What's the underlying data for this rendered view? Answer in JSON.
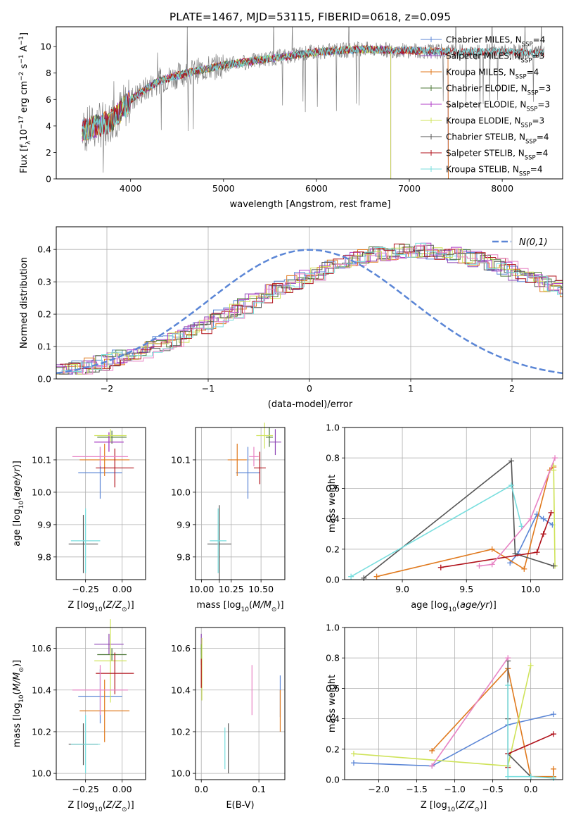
{
  "figure_title": "PLATE=1467, MJD=53115, FIBERID=0618, z=0.095",
  "palette": {
    "chabrier_miles": "#5b86d6",
    "salpeter_miles": "#8e44b5",
    "kroupa_miles": "#e07a1f",
    "chabrier_elodie": "#4f7a3a",
    "salpeter_elodie": "#b03fc7",
    "kroupa_elodie": "#cfe35a",
    "chabrier_stelib": "#555555",
    "salpeter_stelib": "#b0121b",
    "kroupa_stelib": "#78dede",
    "pink": "#e783c4",
    "normal_line": "#5b86d6",
    "observed": "#808080"
  },
  "chart_data": [
    {
      "id": "spectrum",
      "type": "line",
      "title": "PLATE=1467, MJD=53115, FIBERID=0618, z=0.095",
      "xlabel": "wavelength [Angstrom, rest frame]",
      "ylabel": "Flux [f_λ 10^-17 erg cm^-2 s^-1 A^-1]",
      "xlim": [
        3200,
        8650
      ],
      "ylim": [
        0,
        11.5
      ],
      "xticks": [
        "4000",
        "5000",
        "6000",
        "7000",
        "8000"
      ],
      "yticks": [
        "0",
        "2",
        "4",
        "6",
        "8",
        "10"
      ],
      "legend_loc": "right",
      "observed_continuum": {
        "x": [
          3480,
          3600,
          3800,
          4000,
          4300,
          4600,
          5000,
          5500,
          6000,
          6500,
          7000,
          7500,
          8000,
          8450
        ],
        "y": [
          3.6,
          3.9,
          4.4,
          6.0,
          7.4,
          8.0,
          8.6,
          9.1,
          9.6,
          9.8,
          9.7,
          9.6,
          9.6,
          9.5
        ]
      },
      "series": [
        {
          "name": "Chabrier MILES",
          "nssp": "4",
          "color_key": "chabrier_miles",
          "x_end": 7420
        },
        {
          "name": "Salpeter MILES",
          "nssp": "3",
          "color_key": "salpeter_miles",
          "x_end": 7420
        },
        {
          "name": "Kroupa MILES",
          "nssp": "4",
          "color_key": "kroupa_miles",
          "x_end": 7420
        },
        {
          "name": "Chabrier ELODIE",
          "nssp": "3",
          "color_key": "chabrier_elodie",
          "x_end": 6800
        },
        {
          "name": "Salpeter ELODIE",
          "nssp": "3",
          "color_key": "salpeter_elodie",
          "x_end": 6800
        },
        {
          "name": "Kroupa ELODIE",
          "nssp": "3",
          "color_key": "kroupa_elodie",
          "x_end": 6800
        },
        {
          "name": "Chabrier STELIB",
          "nssp": "4",
          "color_key": "chabrier_stelib",
          "x_end": 8450
        },
        {
          "name": "Salpeter STELIB",
          "nssp": "4",
          "color_key": "salpeter_stelib",
          "x_end": 8450
        },
        {
          "name": "Kroupa STELIB",
          "nssp": "4",
          "color_key": "kroupa_stelib",
          "x_end": 8450
        }
      ]
    },
    {
      "id": "residuals",
      "type": "histogram",
      "xlabel": "(data-model)/error",
      "ylabel": "Normed distribution",
      "xlim": [
        -2.5,
        2.5
      ],
      "ylim": [
        0,
        0.47
      ],
      "xticks": [
        "−2",
        "−1",
        "0",
        "1",
        "2"
      ],
      "yticks": [
        "0.0",
        "0.1",
        "0.2",
        "0.3",
        "0.4"
      ],
      "legend": "N(0,1)",
      "legend_loc": "top-right",
      "bin_width": 0.1,
      "bin_start": -2.5,
      "values": [
        0.022,
        0.026,
        0.034,
        0.043,
        0.05,
        0.058,
        0.066,
        0.075,
        0.086,
        0.097,
        0.109,
        0.122,
        0.136,
        0.149,
        0.164,
        0.178,
        0.193,
        0.208,
        0.224,
        0.239,
        0.254,
        0.27,
        0.285,
        0.3,
        0.314,
        0.327,
        0.34,
        0.352,
        0.362,
        0.371,
        0.379,
        0.385,
        0.39,
        0.394,
        0.396,
        0.398,
        0.397,
        0.394,
        0.39,
        0.384,
        0.378,
        0.37,
        0.361,
        0.351,
        0.34,
        0.329,
        0.317,
        0.305,
        0.293,
        0.281,
        0.268,
        0.255,
        0.242,
        0.229,
        0.216,
        0.202,
        0.189,
        0.176,
        0.164,
        0.151,
        0.139,
        0.128,
        0.117,
        0.106,
        0.097,
        0.088,
        0.079,
        0.071,
        0.064,
        0.058,
        0.052,
        0.047,
        0.042,
        0.038,
        0.034,
        0.031,
        0.029,
        0.027,
        0.025,
        0.024,
        0.022,
        0.021,
        0.02,
        0.02,
        0.02,
        0.02,
        0.02,
        0.02,
        0.02,
        0.02,
        0.02,
        0.02,
        0.02,
        0.02,
        0.02,
        0.02,
        0.02,
        0.02,
        0.02,
        0.02,
        0.02
      ]
    },
    {
      "id": "age_vs_z",
      "type": "errorbar",
      "xlabel": "Z [log10(Z/Z⊙)]",
      "ylabel": "age [log10(age/yr)]",
      "xlim": [
        -0.45,
        0.16
      ],
      "ylim": [
        9.73,
        10.2
      ],
      "xticks": [
        "−0.25",
        "0.00"
      ],
      "yticks": [
        "9.8",
        "9.9",
        "10.0",
        "10.1"
      ],
      "points": [
        {
          "color_key": "chabrier_miles",
          "x": -0.15,
          "xerr": 0.15,
          "y": 10.06,
          "yerr": 0.08
        },
        {
          "color_key": "salpeter_miles",
          "x": -0.09,
          "xerr": 0.1,
          "y": 10.155,
          "yerr": 0.03
        },
        {
          "color_key": "kroupa_miles",
          "x": -0.12,
          "xerr": 0.17,
          "y": 10.1,
          "yerr": 0.05
        },
        {
          "color_key": "chabrier_elodie",
          "x": -0.07,
          "xerr": 0.1,
          "y": 10.17,
          "yerr": 0.02
        },
        {
          "color_key": "salpeter_elodie",
          "x": -0.09,
          "xerr": 0.1,
          "y": 10.155,
          "yerr": 0.03
        },
        {
          "color_key": "kroupa_elodie",
          "x": -0.08,
          "xerr": 0.11,
          "y": 10.175,
          "yerr": 0.02
        },
        {
          "color_key": "chabrier_stelib",
          "x": -0.265,
          "xerr": 0.1,
          "y": 9.84,
          "yerr": 0.09
        },
        {
          "color_key": "salpeter_stelib",
          "x": -0.05,
          "xerr": 0.13,
          "y": 10.075,
          "yerr": 0.06
        },
        {
          "color_key": "kroupa_stelib",
          "x": -0.25,
          "xerr": 0.1,
          "y": 9.85,
          "yerr": 0.1
        },
        {
          "color_key": "pink",
          "x": -0.15,
          "xerr": 0.19,
          "y": 10.11,
          "yerr": 0.03
        }
      ]
    },
    {
      "id": "age_vs_mass",
      "type": "errorbar",
      "xlabel": "mass [log10(M/M⊙)]",
      "ylabel": "",
      "xlim": [
        9.95,
        10.7
      ],
      "ylim": [
        9.73,
        10.2
      ],
      "xticks": [
        "10.00",
        "10.25",
        "10.50"
      ],
      "yticks": [
        "9.8",
        "9.9",
        "10.0",
        "10.1"
      ],
      "points": [
        {
          "color_key": "chabrier_miles",
          "x": 10.39,
          "xerr": 0.1,
          "y": 10.06,
          "yerr": 0.08
        },
        {
          "color_key": "salpeter_miles",
          "x": 10.62,
          "xerr": 0.05,
          "y": 10.155,
          "yerr": 0.04
        },
        {
          "color_key": "kroupa_miles",
          "x": 10.3,
          "xerr": 0.08,
          "y": 10.1,
          "yerr": 0.05
        },
        {
          "color_key": "chabrier_elodie",
          "x": 10.57,
          "xerr": 0.03,
          "y": 10.17,
          "yerr": 0.03
        },
        {
          "color_key": "kroupa_elodie",
          "x": 10.53,
          "xerr": 0.07,
          "y": 10.175,
          "yerr": 0.04
        },
        {
          "color_key": "chabrier_stelib",
          "x": 10.15,
          "xerr": 0.1,
          "y": 9.84,
          "yerr": 0.12
        },
        {
          "color_key": "salpeter_stelib",
          "x": 10.49,
          "xerr": 0.05,
          "y": 10.075,
          "yerr": 0.05
        },
        {
          "color_key": "kroupa_stelib",
          "x": 10.14,
          "xerr": 0.07,
          "y": 9.85,
          "yerr": 0.1
        },
        {
          "color_key": "pink",
          "x": 10.44,
          "xerr": 0.04,
          "y": 10.11,
          "yerr": 0.03
        }
      ]
    },
    {
      "id": "weight_vs_age",
      "type": "line",
      "xlabel": "age [log10(age/yr)]",
      "ylabel": "mass weight",
      "xlim": [
        8.55,
        10.25
      ],
      "ylim": [
        0,
        1.0
      ],
      "xticks": [
        "9.0",
        "9.5",
        "10.0"
      ],
      "yticks": [
        "0.0",
        "0.2",
        "0.4",
        "0.6",
        "0.8",
        "1.0"
      ],
      "series": [
        {
          "color_key": "chabrier_miles",
          "x": [
            9.84,
            9.9,
            10.05,
            10.1,
            10.17
          ],
          "y": [
            0.11,
            0.17,
            0.43,
            0.4,
            0.36
          ]
        },
        {
          "color_key": "kroupa_miles",
          "x": [
            8.8,
            9.7,
            9.95,
            10.15,
            10.18
          ],
          "y": [
            0.02,
            0.2,
            0.07,
            0.72,
            0.74
          ]
        },
        {
          "color_key": "kroupa_elodie",
          "x": [
            10.18,
            10.19,
            10.18
          ],
          "y": [
            0.75,
            0.09,
            0.72
          ]
        },
        {
          "color_key": "chabrier_stelib",
          "x": [
            8.7,
            9.85,
            9.88,
            10.18
          ],
          "y": [
            0.01,
            0.78,
            0.17,
            0.09
          ]
        },
        {
          "color_key": "salpeter_stelib",
          "x": [
            9.3,
            10.05,
            10.1,
            10.16
          ],
          "y": [
            0.08,
            0.18,
            0.3,
            0.44
          ]
        },
        {
          "color_key": "kroupa_stelib",
          "x": [
            8.6,
            9.85,
            9.93
          ],
          "y": [
            0.02,
            0.62,
            0.35
          ]
        },
        {
          "color_key": "pink",
          "x": [
            9.6,
            9.7,
            10.0,
            10.19
          ],
          "y": [
            0.09,
            0.1,
            0.4,
            0.8
          ]
        }
      ]
    },
    {
      "id": "mass_vs_z",
      "type": "errorbar",
      "xlabel": "Z [log10(Z/Z⊙)]",
      "ylabel": "mass [log10(M/M⊙)]",
      "xlim": [
        -0.45,
        0.16
      ],
      "ylim": [
        9.97,
        10.7
      ],
      "xticks": [
        "−0.25",
        "0.00"
      ],
      "yticks": [
        "10.0",
        "10.2",
        "10.4",
        "10.6"
      ],
      "points": [
        {
          "color_key": "chabrier_miles",
          "x": -0.15,
          "xerr": 0.15,
          "y": 10.37,
          "yerr": 0.13
        },
        {
          "color_key": "salpeter_miles",
          "x": -0.09,
          "xerr": 0.1,
          "y": 10.62,
          "yerr": 0.05
        },
        {
          "color_key": "kroupa_miles",
          "x": -0.12,
          "xerr": 0.17,
          "y": 10.3,
          "yerr": 0.15
        },
        {
          "color_key": "chabrier_elodie",
          "x": -0.07,
          "xerr": 0.1,
          "y": 10.57,
          "yerr": 0.03
        },
        {
          "color_key": "kroupa_elodie",
          "x": -0.08,
          "xerr": 0.11,
          "y": 10.54,
          "yerr": 0.2
        },
        {
          "color_key": "chabrier_stelib",
          "x": -0.265,
          "xerr": 0.1,
          "y": 10.14,
          "yerr": 0.1
        },
        {
          "color_key": "salpeter_stelib",
          "x": -0.05,
          "xerr": 0.13,
          "y": 10.48,
          "yerr": 0.1
        },
        {
          "color_key": "kroupa_stelib",
          "x": -0.25,
          "xerr": 0.1,
          "y": 10.14,
          "yerr": 0.14
        },
        {
          "color_key": "pink",
          "x": -0.15,
          "xerr": 0.19,
          "y": 10.4,
          "yerr": 0.12
        }
      ]
    },
    {
      "id": "mass_vs_ebv",
      "type": "errorbar",
      "xlabel": "E(B-V)",
      "ylabel": "",
      "xlim": [
        -0.01,
        0.145
      ],
      "ylim": [
        9.97,
        10.7
      ],
      "xticks": [
        "0.0",
        "0.1"
      ],
      "yticks": [
        "10.0",
        "10.2",
        "10.4",
        "10.6"
      ],
      "points": [
        {
          "color_key": "chabrier_miles",
          "x": 0.137,
          "xerr": 0,
          "y": 10.37,
          "yerr": 0.1
        },
        {
          "color_key": "salpeter_miles",
          "x": 0.0,
          "xerr": 0,
          "y": 10.62,
          "yerr": 0.05
        },
        {
          "color_key": "kroupa_miles",
          "x": 0.137,
          "xerr": 0,
          "y": 10.3,
          "yerr": 0.1
        },
        {
          "color_key": "chabrier_elodie",
          "x": 0.0,
          "xerr": 0,
          "y": 10.57,
          "yerr": 0.05
        },
        {
          "color_key": "kroupa_elodie",
          "x": 0.001,
          "xerr": 0,
          "y": 10.5,
          "yerr": 0.15
        },
        {
          "color_key": "chabrier_stelib",
          "x": 0.047,
          "xerr": 0,
          "y": 10.12,
          "yerr": 0.12
        },
        {
          "color_key": "salpeter_stelib",
          "x": 0.0,
          "xerr": 0,
          "y": 10.48,
          "yerr": 0.07
        },
        {
          "color_key": "kroupa_stelib",
          "x": 0.041,
          "xerr": 0,
          "y": 10.12,
          "yerr": 0.1
        },
        {
          "color_key": "pink",
          "x": 0.088,
          "xerr": 0,
          "y": 10.4,
          "yerr": 0.12
        }
      ]
    },
    {
      "id": "weight_vs_z",
      "type": "line",
      "xlabel": "Z [log10(Z/Z⊙)]",
      "ylabel": "mass weight",
      "xlim": [
        -2.45,
        0.42
      ],
      "ylim": [
        0,
        1.0
      ],
      "xticks": [
        "−2.0",
        "−1.5",
        "−1.0",
        "−0.5",
        "0.0"
      ],
      "yticks": [
        "0.0",
        "0.2",
        "0.4",
        "0.6",
        "0.8",
        "1.0"
      ],
      "series": [
        {
          "color_key": "chabrier_miles",
          "x": [
            -2.33,
            -1.3,
            -0.3,
            0.3
          ],
          "y": [
            0.11,
            0.09,
            0.36,
            0.43
          ]
        },
        {
          "color_key": "kroupa_miles",
          "x": [
            -1.3,
            -0.3,
            0.0,
            0.3,
            0.3
          ],
          "y": [
            0.19,
            0.73,
            0.02,
            0.02,
            0.07
          ]
        },
        {
          "color_key": "kroupa_elodie",
          "x": [
            -2.33,
            -0.3,
            0.0,
            -0.3
          ],
          "y": [
            0.17,
            0.09,
            0.75,
            0.09
          ]
        },
        {
          "color_key": "chabrier_stelib",
          "x": [
            -0.3,
            -0.3,
            -0.3,
            0.0
          ],
          "y": [
            0.78,
            0.4,
            0.17,
            0.02
          ]
        },
        {
          "color_key": "salpeter_stelib",
          "x": [
            -0.3,
            -0.3,
            0.3
          ],
          "y": [
            0.08,
            0.17,
            0.3
          ]
        },
        {
          "color_key": "kroupa_stelib",
          "x": [
            -0.3,
            -0.3,
            0.0,
            0.3
          ],
          "y": [
            0.62,
            0.02,
            0.02,
            0.01
          ]
        },
        {
          "color_key": "pink",
          "x": [
            -1.3,
            -0.3
          ],
          "y": [
            0.09,
            0.8
          ]
        }
      ]
    }
  ]
}
